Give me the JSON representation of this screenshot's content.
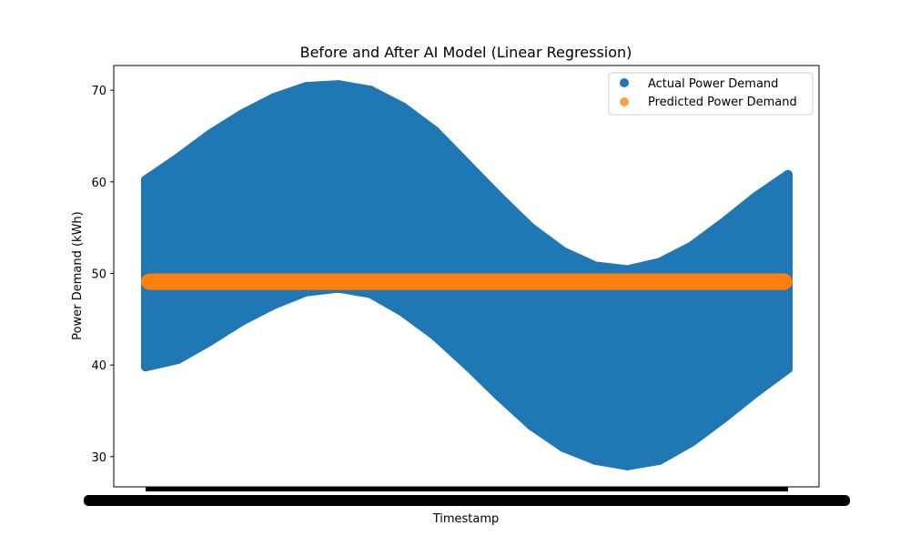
{
  "chart_data": {
    "type": "scatter",
    "title": "Before and After AI Model (Linear Regression)",
    "xlabel": "Timestamp",
    "ylabel": "Power Demand (kWh)",
    "ylim": [
      26.7,
      72.7
    ],
    "yticks": [
      30,
      40,
      50,
      60,
      70
    ],
    "grid": false,
    "legend_position": "top-right",
    "x_tick_labels_note_overlapping": true,
    "series": [
      {
        "name": "Actual Power Demand",
        "color": "#1f77b4",
        "x": [
          0,
          0.05,
          0.1,
          0.15,
          0.2,
          0.25,
          0.3,
          0.35,
          0.4,
          0.45,
          0.5,
          0.55,
          0.6,
          0.65,
          0.7,
          0.75,
          0.8,
          0.85,
          0.9,
          0.95,
          1.0
        ],
        "lower": [
          39.8,
          40.6,
          42.6,
          44.8,
          46.6,
          48.0,
          48.4,
          47.8,
          45.8,
          43.2,
          40.0,
          36.6,
          33.4,
          31.0,
          29.6,
          29.0,
          29.6,
          31.6,
          34.2,
          37.0,
          39.6
        ],
        "upper": [
          60.2,
          62.6,
          65.2,
          67.4,
          69.2,
          70.4,
          70.6,
          70.0,
          68.2,
          65.6,
          62.0,
          58.4,
          55.0,
          52.4,
          50.8,
          50.4,
          51.2,
          53.0,
          55.6,
          58.4,
          60.8
        ]
      },
      {
        "name": "Predicted Power Demand",
        "color": "#ff7f0e",
        "x": [
          0,
          1
        ],
        "values": [
          49.1,
          49.1
        ],
        "band": [
          48.2,
          50.0
        ]
      }
    ]
  }
}
